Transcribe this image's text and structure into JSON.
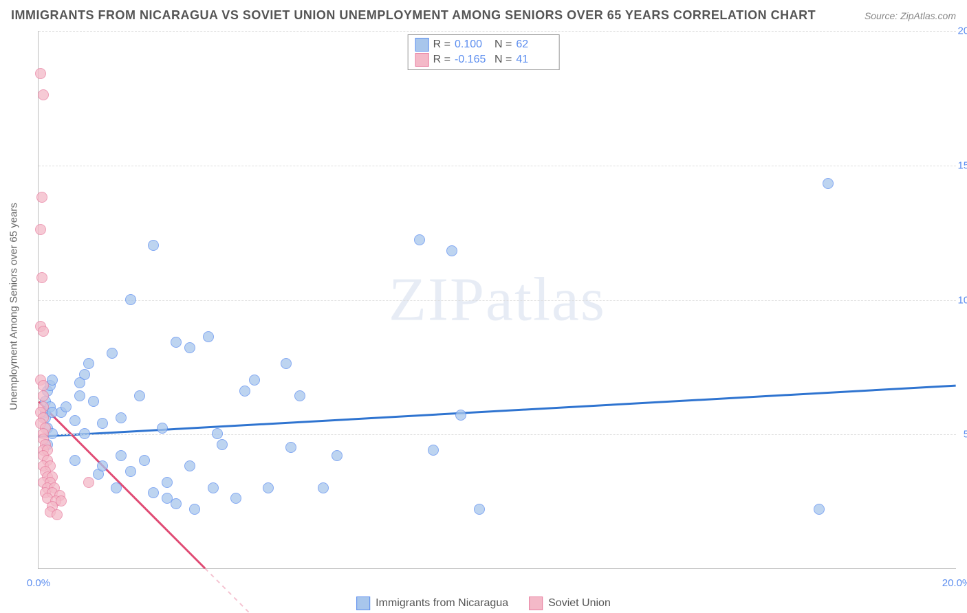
{
  "title": "IMMIGRANTS FROM NICARAGUA VS SOVIET UNION UNEMPLOYMENT AMONG SENIORS OVER 65 YEARS CORRELATION CHART",
  "source_label": "Source:",
  "source_value": "ZipAtlas.com",
  "watermark_a": "ZIP",
  "watermark_b": "atlas",
  "ylabel": "Unemployment Among Seniors over 65 years",
  "chart": {
    "type": "scatter",
    "xlim": [
      0,
      20
    ],
    "ylim": [
      0,
      20
    ],
    "ytick_step": 5,
    "xtick_step": 20,
    "x_ticks": [
      {
        "pos": 0,
        "label": "0.0%"
      },
      {
        "pos": 20,
        "label": "20.0%"
      }
    ],
    "y_ticks": [
      {
        "pos": 5,
        "label": "5.0%"
      },
      {
        "pos": 10,
        "label": "10.0%"
      },
      {
        "pos": 15,
        "label": "15.0%"
      },
      {
        "pos": 20,
        "label": "20.0%"
      }
    ],
    "grid_color": "#dddddd",
    "background_color": "#ffffff",
    "axis_color": "#bbbbbb",
    "marker_size": 16,
    "series": [
      {
        "key": "nicaragua",
        "label": "Immigrants from Nicaragua",
        "R": "0.100",
        "N": "62",
        "fill": "#a8c6ec",
        "stroke": "#5b8def",
        "trend_color": "#2f74d0",
        "trend_y_at_x0": 4.9,
        "trend_y_at_xmax": 6.8,
        "dash_extend": false,
        "points": [
          [
            0.15,
            6.2
          ],
          [
            0.15,
            5.8
          ],
          [
            0.15,
            5.6
          ],
          [
            0.2,
            6.6
          ],
          [
            0.2,
            5.2
          ],
          [
            0.2,
            4.6
          ],
          [
            0.25,
            6.8
          ],
          [
            0.25,
            6.0
          ],
          [
            0.3,
            7.0
          ],
          [
            0.3,
            5.8
          ],
          [
            0.3,
            5.0
          ],
          [
            0.5,
            5.8
          ],
          [
            0.6,
            6.0
          ],
          [
            0.8,
            5.5
          ],
          [
            0.8,
            4.0
          ],
          [
            0.9,
            6.4
          ],
          [
            1.0,
            7.2
          ],
          [
            1.0,
            5.0
          ],
          [
            1.1,
            7.6
          ],
          [
            1.2,
            6.2
          ],
          [
            1.3,
            3.5
          ],
          [
            1.4,
            3.8
          ],
          [
            1.4,
            5.4
          ],
          [
            1.6,
            8.0
          ],
          [
            1.7,
            3.0
          ],
          [
            1.8,
            5.6
          ],
          [
            1.8,
            4.2
          ],
          [
            2.0,
            10.0
          ],
          [
            2.0,
            3.6
          ],
          [
            2.2,
            6.4
          ],
          [
            2.3,
            4.0
          ],
          [
            2.5,
            12.0
          ],
          [
            2.5,
            2.8
          ],
          [
            2.7,
            5.2
          ],
          [
            2.8,
            3.2
          ],
          [
            2.8,
            2.6
          ],
          [
            3.0,
            8.4
          ],
          [
            3.0,
            2.4
          ],
          [
            3.3,
            8.2
          ],
          [
            3.3,
            3.8
          ],
          [
            3.4,
            2.2
          ],
          [
            3.7,
            8.6
          ],
          [
            3.8,
            3.0
          ],
          [
            3.9,
            5.0
          ],
          [
            4.0,
            4.6
          ],
          [
            4.3,
            2.6
          ],
          [
            4.5,
            6.6
          ],
          [
            4.7,
            7.0
          ],
          [
            5.0,
            3.0
          ],
          [
            5.4,
            7.6
          ],
          [
            5.5,
            4.5
          ],
          [
            5.7,
            6.4
          ],
          [
            6.2,
            3.0
          ],
          [
            6.5,
            4.2
          ],
          [
            8.3,
            12.2
          ],
          [
            8.6,
            4.4
          ],
          [
            9.0,
            11.8
          ],
          [
            9.2,
            5.7
          ],
          [
            9.6,
            2.2
          ],
          [
            17.2,
            14.3
          ],
          [
            17.0,
            2.2
          ],
          [
            0.9,
            6.9
          ]
        ]
      },
      {
        "key": "soviet",
        "label": "Soviet Union",
        "R": "-0.165",
        "N": "41",
        "fill": "#f4b9c8",
        "stroke": "#e87ea0",
        "trend_color": "#e04b74",
        "trend_y_at_x0": 6.2,
        "trend_y_at_xmax": -28,
        "dash_extend": true,
        "points": [
          [
            0.05,
            18.4
          ],
          [
            0.1,
            17.6
          ],
          [
            0.08,
            13.8
          ],
          [
            0.05,
            12.6
          ],
          [
            0.08,
            10.8
          ],
          [
            0.05,
            9.0
          ],
          [
            0.1,
            8.8
          ],
          [
            0.05,
            7.0
          ],
          [
            0.1,
            6.8
          ],
          [
            0.1,
            6.4
          ],
          [
            0.1,
            6.0
          ],
          [
            0.05,
            5.8
          ],
          [
            0.1,
            5.6
          ],
          [
            0.05,
            5.4
          ],
          [
            0.15,
            5.2
          ],
          [
            0.1,
            5.0
          ],
          [
            0.1,
            4.8
          ],
          [
            0.15,
            4.6
          ],
          [
            0.1,
            4.4
          ],
          [
            0.2,
            4.4
          ],
          [
            0.1,
            4.2
          ],
          [
            0.2,
            4.0
          ],
          [
            0.1,
            3.8
          ],
          [
            0.25,
            3.8
          ],
          [
            0.15,
            3.6
          ],
          [
            0.2,
            3.4
          ],
          [
            0.3,
            3.4
          ],
          [
            0.1,
            3.2
          ],
          [
            0.25,
            3.2
          ],
          [
            0.2,
            3.0
          ],
          [
            0.35,
            3.0
          ],
          [
            0.15,
            2.8
          ],
          [
            0.3,
            2.8
          ],
          [
            0.46,
            2.7
          ],
          [
            0.2,
            2.6
          ],
          [
            0.38,
            2.5
          ],
          [
            0.5,
            2.5
          ],
          [
            0.3,
            2.3
          ],
          [
            0.25,
            2.1
          ],
          [
            0.4,
            2.0
          ],
          [
            1.1,
            3.2
          ]
        ]
      }
    ]
  },
  "legend_top_labels": {
    "R": "R =",
    "N": "N ="
  },
  "bottom_legend": [
    {
      "swatch_fill": "#a8c6ec",
      "swatch_stroke": "#5b8def",
      "label": "Immigrants from Nicaragua"
    },
    {
      "swatch_fill": "#f4b9c8",
      "swatch_stroke": "#e87ea0",
      "label": "Soviet Union"
    }
  ]
}
